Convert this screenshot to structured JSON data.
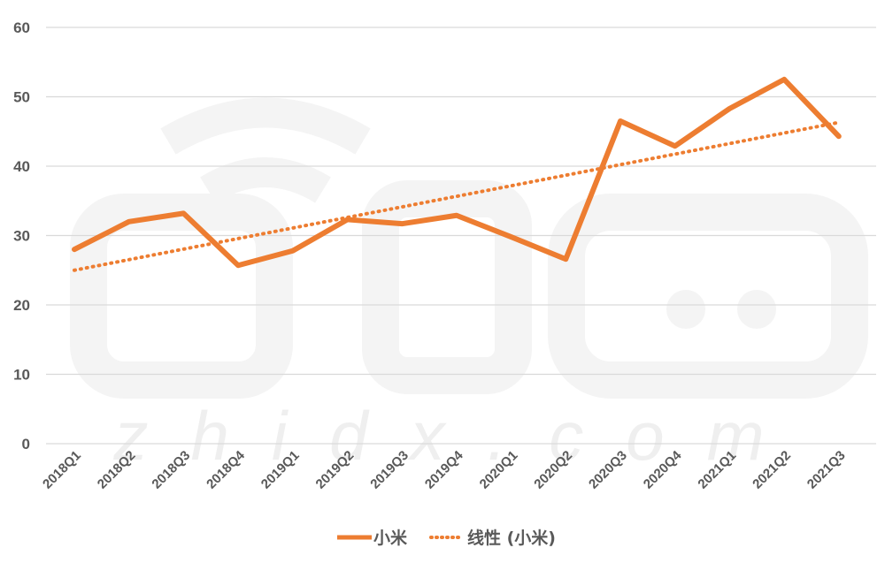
{
  "chart_data": {
    "type": "line",
    "categories": [
      "2018Q1",
      "2018Q2",
      "2018Q3",
      "2018Q4",
      "2019Q1",
      "2019Q2",
      "2019Q3",
      "2019Q4",
      "2020Q1",
      "2020Q2",
      "2020Q3",
      "2020Q4",
      "2021Q1",
      "2021Q2",
      "2021Q3"
    ],
    "series": [
      {
        "name": "小米",
        "values": [
          28.0,
          32.0,
          33.2,
          25.7,
          27.8,
          32.3,
          31.7,
          32.9,
          29.8,
          26.6,
          46.5,
          42.9,
          48.3,
          52.5,
          44.3
        ],
        "color": "#ED7D31",
        "style": "solid"
      }
    ],
    "trendline": {
      "name": "线性 (小米)",
      "type": "linear",
      "start": 25.0,
      "end": 46.3,
      "color": "#ED7D31",
      "style": "dotted"
    },
    "ylim": [
      0,
      60
    ],
    "yticks": [
      0,
      10,
      20,
      30,
      40,
      50,
      60
    ],
    "grid": true,
    "legend_position": "bottom",
    "title": "",
    "xlabel": "",
    "ylabel": "",
    "watermark": "zhidx.com"
  }
}
